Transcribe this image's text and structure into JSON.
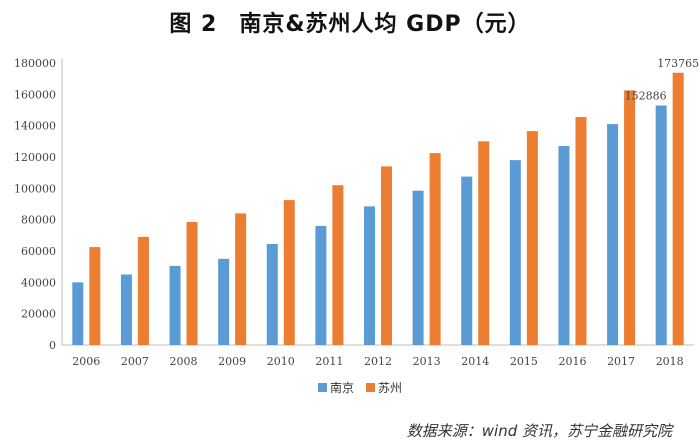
{
  "header": {
    "fig_label": "图 2",
    "title": "南京&苏州人均 GDP（元）"
  },
  "source": "数据来源：wind 资讯，苏宁金融研究院",
  "colors": {
    "nanjing": "#5b9bd5",
    "suzhou": "#ed7d31"
  },
  "chart_data": {
    "type": "bar",
    "title": "南京&苏州人均 GDP（元）",
    "categories": [
      "2006",
      "2007",
      "2008",
      "2009",
      "2010",
      "2011",
      "2012",
      "2013",
      "2014",
      "2015",
      "2016",
      "2017",
      "2018"
    ],
    "series": [
      {
        "name": "南京",
        "values": [
          40000,
          45000,
          50500,
          55000,
          64500,
          76000,
          88500,
          98500,
          107500,
          118000,
          127000,
          141000,
          152886
        ]
      },
      {
        "name": "苏州",
        "values": [
          62500,
          69000,
          78500,
          84000,
          92500,
          102000,
          114000,
          122500,
          130000,
          136500,
          145500,
          162500,
          173765
        ]
      }
    ],
    "data_labels": [
      {
        "series": "南京",
        "category": "2018",
        "text": "152886"
      },
      {
        "series": "苏州",
        "category": "2018",
        "text": "173765"
      }
    ],
    "yticks": [
      "0",
      "20000",
      "40000",
      "60000",
      "80000",
      "100000",
      "120000",
      "140000",
      "160000",
      "180000"
    ],
    "ylim": [
      0,
      180000
    ],
    "grid": false,
    "legend_position": "bottom"
  }
}
